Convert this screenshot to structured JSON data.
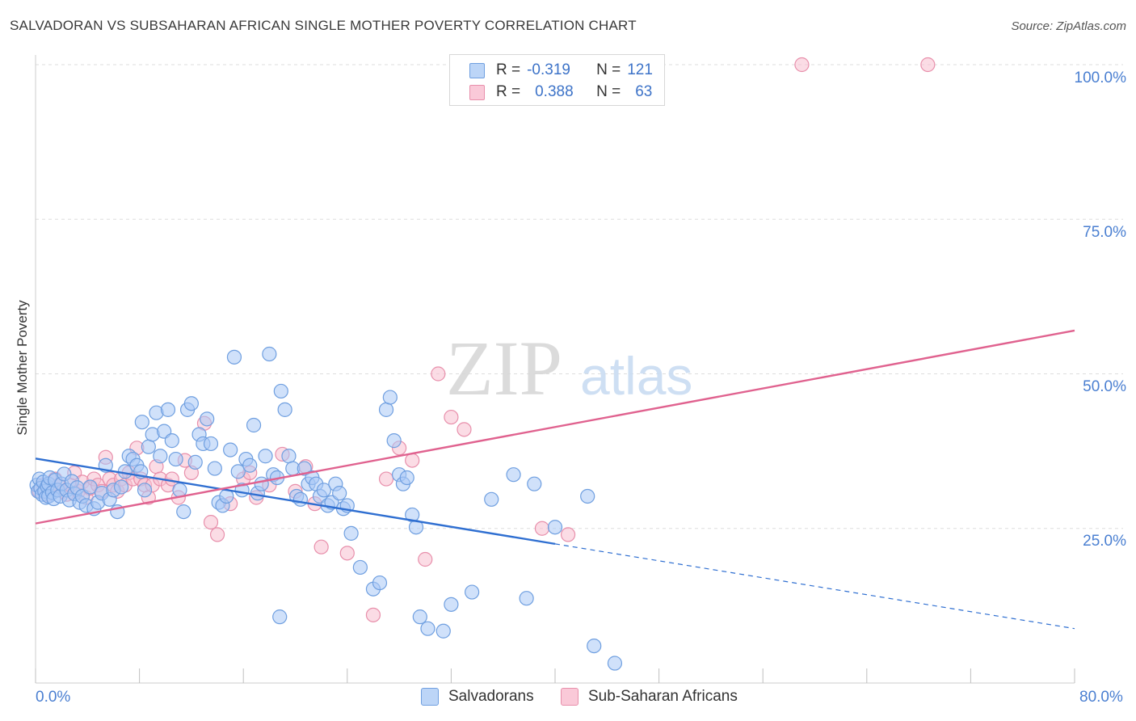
{
  "title": "SALVADORAN VS SUBSAHARAN AFRICAN SINGLE MOTHER POVERTY CORRELATION CHART",
  "source": "Source: ZipAtlas.com",
  "watermark": {
    "zip": "ZIP",
    "atlas": "atlas"
  },
  "colors": {
    "blue_fill": "#aac8f5",
    "blue_stroke": "#6f9fe0",
    "blue_line": "#2f6fd1",
    "pink_fill": "#f7bfd0",
    "pink_stroke": "#e88fab",
    "pink_line": "#e0628f",
    "tick_text": "#4a7fd1",
    "grid": "#dddddd"
  },
  "legend": {
    "rows": [
      {
        "r_label": "R =",
        "r_value": "-0.319",
        "n_label": "N =",
        "n_value": "121"
      },
      {
        "r_label": "R =",
        "r_value": "0.388",
        "n_label": "N =",
        "n_value": "63"
      }
    ]
  },
  "bottom_legend": {
    "series1": "Salvadorans",
    "series2": "Sub-Saharan Africans"
  },
  "chart_data": {
    "type": "scatter",
    "title": "SALVADORAN VS SUBSAHARAN AFRICAN SINGLE MOTHER POVERTY CORRELATION CHART",
    "xlabel": "",
    "ylabel": "Single Mother Poverty",
    "x_ticks": [
      "0.0%",
      "80.0%"
    ],
    "y_ticks": [
      "25.0%",
      "50.0%",
      "75.0%",
      "100.0%"
    ],
    "xlim": [
      0,
      80
    ],
    "ylim": [
      0,
      100
    ],
    "grid": "horizontal dashed",
    "legend_placement": "top-center",
    "series": [
      {
        "name": "Salvadorans",
        "R": -0.319,
        "N": 121,
        "trend": {
          "x": [
            0,
            40,
            80
          ],
          "y": [
            36.3,
            22.5,
            8.8
          ],
          "solid_until": 40
        },
        "points": [
          [
            0.1,
            32
          ],
          [
            0.2,
            31
          ],
          [
            0.3,
            33
          ],
          [
            0.4,
            31.5
          ],
          [
            0.5,
            30.5
          ],
          [
            0.6,
            32.5
          ],
          [
            0.7,
            31
          ],
          [
            0.8,
            30
          ],
          [
            0.9,
            31.8
          ],
          [
            1.0,
            32.2
          ],
          [
            1.0,
            30.2
          ],
          [
            1.1,
            33.2
          ],
          [
            1.3,
            30.8
          ],
          [
            1.4,
            29.8
          ],
          [
            1.5,
            32.8
          ],
          [
            1.7,
            31.2
          ],
          [
            1.9,
            30.2
          ],
          [
            2.0,
            32.2
          ],
          [
            2.2,
            33.8
          ],
          [
            2.4,
            31.2
          ],
          [
            2.6,
            29.6
          ],
          [
            2.8,
            32.6
          ],
          [
            3.0,
            30.6
          ],
          [
            3.2,
            31.6
          ],
          [
            3.4,
            29.2
          ],
          [
            3.6,
            30.2
          ],
          [
            3.9,
            28.7
          ],
          [
            4.2,
            31.7
          ],
          [
            4.5,
            28.2
          ],
          [
            4.8,
            29.2
          ],
          [
            5.1,
            30.7
          ],
          [
            5.4,
            35.2
          ],
          [
            5.7,
            29.7
          ],
          [
            6.0,
            31.2
          ],
          [
            6.3,
            27.7
          ],
          [
            6.6,
            31.7
          ],
          [
            6.9,
            34.2
          ],
          [
            7.2,
            36.7
          ],
          [
            7.5,
            36.2
          ],
          [
            7.8,
            35.2
          ],
          [
            8.1,
            34.2
          ],
          [
            8.4,
            31.2
          ],
          [
            8.7,
            38.2
          ],
          [
            9.0,
            40.2
          ],
          [
            9.3,
            43.7
          ],
          [
            9.6,
            36.7
          ],
          [
            9.9,
            40.7
          ],
          [
            10.2,
            44.2
          ],
          [
            10.5,
            39.2
          ],
          [
            10.8,
            36.2
          ],
          [
            11.1,
            31.2
          ],
          [
            11.4,
            27.7
          ],
          [
            11.7,
            44.2
          ],
          [
            12.0,
            45.2
          ],
          [
            12.3,
            35.7
          ],
          [
            12.6,
            40.2
          ],
          [
            12.9,
            38.7
          ],
          [
            13.2,
            42.7
          ],
          [
            13.5,
            38.7
          ],
          [
            13.8,
            34.7
          ],
          [
            14.1,
            29.2
          ],
          [
            14.4,
            28.7
          ],
          [
            14.7,
            30.2
          ],
          [
            15.0,
            37.7
          ],
          [
            15.3,
            52.7
          ],
          [
            15.6,
            34.2
          ],
          [
            15.9,
            31.2
          ],
          [
            16.2,
            36.2
          ],
          [
            16.5,
            35.2
          ],
          [
            16.8,
            41.7
          ],
          [
            17.1,
            30.7
          ],
          [
            17.4,
            32.2
          ],
          [
            17.7,
            36.7
          ],
          [
            18.0,
            53.2
          ],
          [
            18.3,
            33.7
          ],
          [
            18.6,
            33.2
          ],
          [
            18.9,
            47.2
          ],
          [
            19.2,
            44.2
          ],
          [
            19.5,
            36.7
          ],
          [
            19.8,
            34.7
          ],
          [
            20.1,
            30.2
          ],
          [
            20.4,
            29.7
          ],
          [
            20.7,
            34.7
          ],
          [
            21.0,
            32.2
          ],
          [
            21.3,
            33.2
          ],
          [
            21.6,
            32.2
          ],
          [
            21.9,
            30.2
          ],
          [
            22.2,
            31.2
          ],
          [
            22.5,
            28.7
          ],
          [
            22.8,
            29.2
          ],
          [
            23.1,
            32.2
          ],
          [
            23.4,
            30.7
          ],
          [
            23.7,
            28.2
          ],
          [
            24.0,
            28.7
          ],
          [
            24.3,
            24.2
          ],
          [
            25.0,
            18.7
          ],
          [
            26.0,
            15.2
          ],
          [
            27.0,
            44.2
          ],
          [
            27.3,
            46.2
          ],
          [
            27.6,
            39.2
          ],
          [
            28.0,
            33.7
          ],
          [
            28.3,
            32.2
          ],
          [
            28.6,
            33.2
          ],
          [
            29.0,
            27.2
          ],
          [
            29.3,
            25.2
          ],
          [
            29.6,
            10.7
          ],
          [
            30.2,
            8.8
          ],
          [
            31.4,
            8.4
          ],
          [
            32.0,
            12.7
          ],
          [
            33.6,
            14.7
          ],
          [
            35.1,
            29.7
          ],
          [
            36.8,
            33.7
          ],
          [
            38.4,
            32.2
          ],
          [
            40.0,
            25.2
          ],
          [
            42.5,
            30.2
          ],
          [
            43.0,
            6.0
          ],
          [
            44.6,
            3.2
          ],
          [
            37.8,
            13.7
          ],
          [
            18.8,
            10.7
          ],
          [
            26.5,
            16.2
          ],
          [
            8.2,
            42.2
          ]
        ]
      },
      {
        "name": "Sub-Saharan Africans",
        "R": 0.388,
        "N": 63,
        "trend": {
          "x": [
            0,
            80
          ],
          "y": [
            25.8,
            57
          ]
        },
        "points": [
          [
            0.3,
            31
          ],
          [
            0.6,
            32
          ],
          [
            0.9,
            30.5
          ],
          [
            1.2,
            31.5
          ],
          [
            1.5,
            33
          ],
          [
            1.8,
            32
          ],
          [
            2.1,
            31
          ],
          [
            2.4,
            30.5
          ],
          [
            2.7,
            32
          ],
          [
            3.0,
            34
          ],
          [
            3.3,
            31
          ],
          [
            3.6,
            32.5
          ],
          [
            3.9,
            30
          ],
          [
            4.2,
            31.5
          ],
          [
            4.5,
            33
          ],
          [
            4.8,
            32
          ],
          [
            5.1,
            31
          ],
          [
            5.4,
            36.5
          ],
          [
            5.7,
            33
          ],
          [
            6.0,
            32
          ],
          [
            6.3,
            31
          ],
          [
            6.6,
            33
          ],
          [
            6.9,
            32
          ],
          [
            7.2,
            34
          ],
          [
            7.5,
            33
          ],
          [
            7.8,
            38
          ],
          [
            8.1,
            33
          ],
          [
            8.4,
            32
          ],
          [
            8.7,
            30
          ],
          [
            9.0,
            32
          ],
          [
            9.3,
            35
          ],
          [
            9.6,
            33
          ],
          [
            10.2,
            32
          ],
          [
            10.5,
            33
          ],
          [
            11.0,
            30
          ],
          [
            11.5,
            36
          ],
          [
            12.0,
            34
          ],
          [
            13.0,
            42
          ],
          [
            13.5,
            26
          ],
          [
            14.0,
            24
          ],
          [
            15.0,
            29
          ],
          [
            16.0,
            33
          ],
          [
            16.5,
            34
          ],
          [
            17.0,
            30
          ],
          [
            18.0,
            32
          ],
          [
            19.0,
            37
          ],
          [
            20.0,
            31
          ],
          [
            20.8,
            35
          ],
          [
            21.5,
            29
          ],
          [
            22.0,
            22
          ],
          [
            24.0,
            21
          ],
          [
            26.0,
            11
          ],
          [
            27.0,
            33
          ],
          [
            28.0,
            38
          ],
          [
            29.0,
            36
          ],
          [
            30.0,
            20
          ],
          [
            31.0,
            50
          ],
          [
            32.0,
            43
          ],
          [
            33.0,
            41
          ],
          [
            39.0,
            25
          ],
          [
            41.0,
            24
          ],
          [
            59.0,
            100
          ],
          [
            68.7,
            100
          ]
        ]
      }
    ]
  }
}
